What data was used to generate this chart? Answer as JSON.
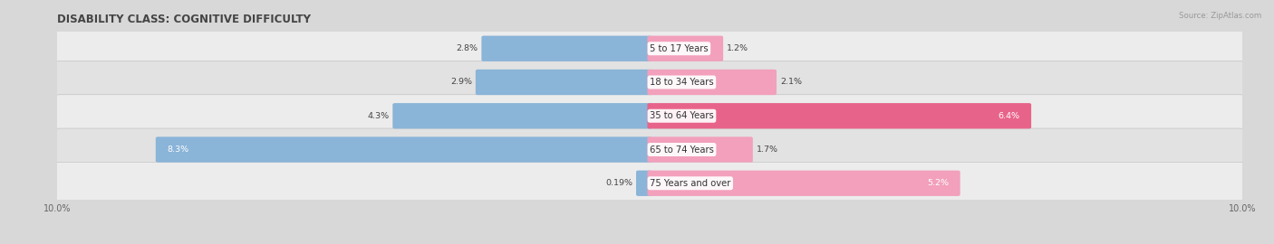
{
  "title": "DISABILITY CLASS: COGNITIVE DIFFICULTY",
  "source": "Source: ZipAtlas.com",
  "categories": [
    "5 to 17 Years",
    "18 to 34 Years",
    "35 to 64 Years",
    "65 to 74 Years",
    "75 Years and over"
  ],
  "male_values": [
    2.8,
    2.9,
    4.3,
    8.3,
    0.19
  ],
  "female_values": [
    1.2,
    2.1,
    6.4,
    1.7,
    5.2
  ],
  "male_color": "#8ab4d8",
  "female_color": "#f2a0bc",
  "female_color_bright": "#e8638a",
  "axis_max": 10.0,
  "row_bg_colors": [
    "#ececec",
    "#e2e2e2"
  ],
  "title_fontsize": 8.5,
  "label_fontsize": 7.2,
  "bar_label_fontsize": 6.8,
  "axis_label_fontsize": 7.0
}
